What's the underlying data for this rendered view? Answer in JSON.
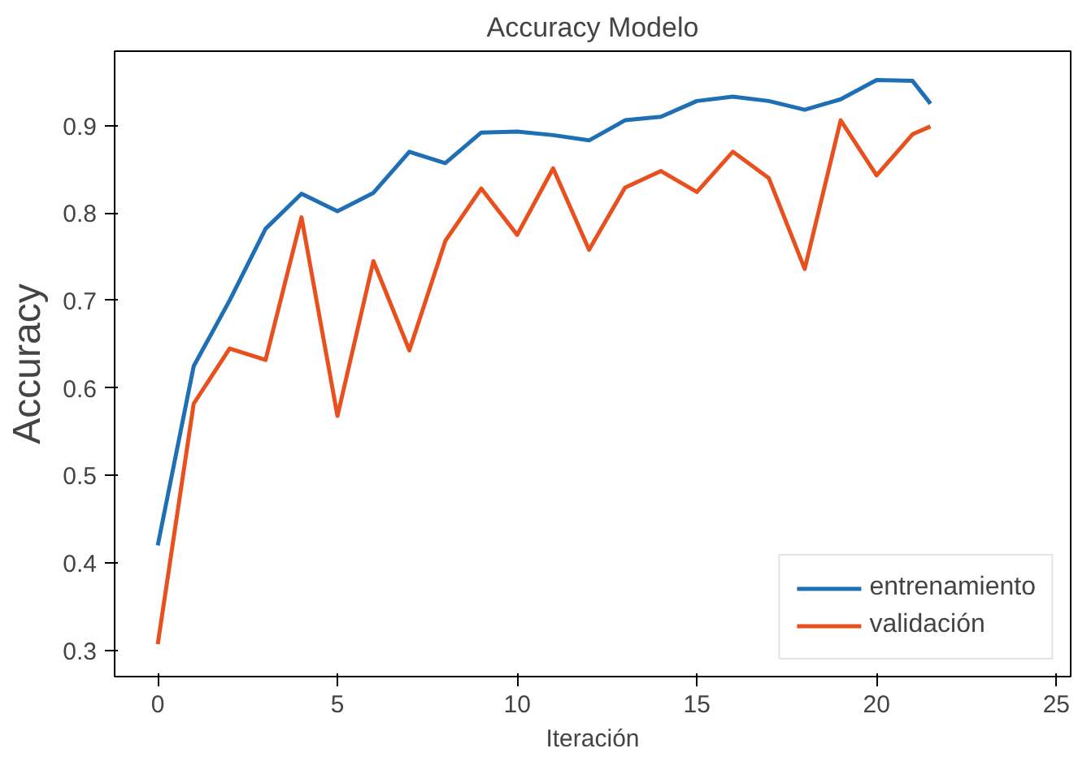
{
  "chart_data": {
    "type": "line",
    "title": "Accuracy Modelo",
    "xlabel": "Iteración",
    "ylabel": "Accuracy",
    "xlim": [
      -1.2,
      25.4
    ],
    "xticks": [
      0,
      5,
      10,
      15,
      20,
      25
    ],
    "ylim": [
      0.27,
      0.985
    ],
    "yticks": [
      0.3,
      0.4,
      0.5,
      0.6,
      0.7,
      0.8,
      0.9
    ],
    "grid": false,
    "legend": "bottom right",
    "line_style": "solid",
    "series": [
      {
        "name": "entrenamiento",
        "color": "#1f6fb4",
        "x": [
          0,
          1,
          2,
          3,
          4,
          5,
          6,
          7,
          8,
          9,
          10,
          11,
          12,
          13,
          14,
          15,
          16,
          17,
          18,
          19,
          20,
          21,
          21.5
        ],
        "values": [
          0.42,
          0.625,
          0.7,
          0.782,
          0.822,
          0.802,
          0.823,
          0.87,
          0.857,
          0.892,
          0.893,
          0.889,
          0.883,
          0.906,
          0.91,
          0.928,
          0.933,
          0.928,
          0.918,
          0.93,
          0.952,
          0.951,
          0.925
        ]
      },
      {
        "name": "validación",
        "color": "#e8501e",
        "x": [
          0,
          1,
          2,
          3,
          4,
          5,
          6,
          7,
          8,
          9,
          10,
          11,
          12,
          13,
          14,
          15,
          16,
          17,
          18,
          19,
          20,
          21,
          21.5
        ],
        "values": [
          0.307,
          0.582,
          0.645,
          0.632,
          0.795,
          0.568,
          0.745,
          0.643,
          0.768,
          0.828,
          0.775,
          0.851,
          0.758,
          0.829,
          0.848,
          0.824,
          0.87,
          0.84,
          0.736,
          0.906,
          0.843,
          0.89,
          0.899
        ]
      }
    ]
  }
}
